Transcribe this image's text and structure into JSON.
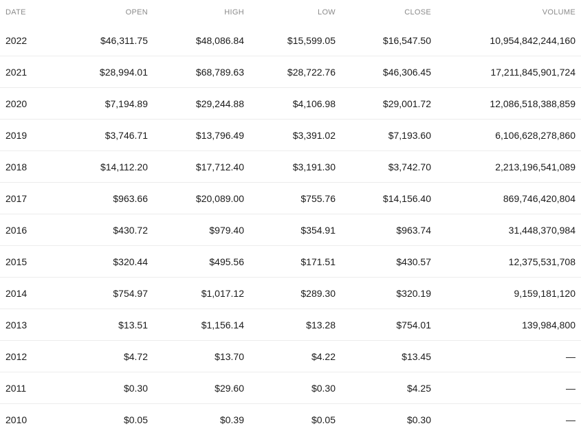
{
  "table": {
    "headers": {
      "date": "DATE",
      "open": "OPEN",
      "high": "HIGH",
      "low": "LOW",
      "close": "CLOSE",
      "volume": "VOLUME"
    },
    "rows": [
      {
        "date": "2022",
        "open": "$46,311.75",
        "high": "$48,086.84",
        "low": "$15,599.05",
        "close": "$16,547.50",
        "volume": "10,954,842,244,160"
      },
      {
        "date": "2021",
        "open": "$28,994.01",
        "high": "$68,789.63",
        "low": "$28,722.76",
        "close": "$46,306.45",
        "volume": "17,211,845,901,724"
      },
      {
        "date": "2020",
        "open": "$7,194.89",
        "high": "$29,244.88",
        "low": "$4,106.98",
        "close": "$29,001.72",
        "volume": "12,086,518,388,859"
      },
      {
        "date": "2019",
        "open": "$3,746.71",
        "high": "$13,796.49",
        "low": "$3,391.02",
        "close": "$7,193.60",
        "volume": "6,106,628,278,860"
      },
      {
        "date": "2018",
        "open": "$14,112.20",
        "high": "$17,712.40",
        "low": "$3,191.30",
        "close": "$3,742.70",
        "volume": "2,213,196,541,089"
      },
      {
        "date": "2017",
        "open": "$963.66",
        "high": "$20,089.00",
        "low": "$755.76",
        "close": "$14,156.40",
        "volume": "869,746,420,804"
      },
      {
        "date": "2016",
        "open": "$430.72",
        "high": "$979.40",
        "low": "$354.91",
        "close": "$963.74",
        "volume": "31,448,370,984"
      },
      {
        "date": "2015",
        "open": "$320.44",
        "high": "$495.56",
        "low": "$171.51",
        "close": "$430.57",
        "volume": "12,375,531,708"
      },
      {
        "date": "2014",
        "open": "$754.97",
        "high": "$1,017.12",
        "low": "$289.30",
        "close": "$320.19",
        "volume": "9,159,181,120"
      },
      {
        "date": "2013",
        "open": "$13.51",
        "high": "$1,156.14",
        "low": "$13.28",
        "close": "$754.01",
        "volume": "139,984,800"
      },
      {
        "date": "2012",
        "open": "$4.72",
        "high": "$13.70",
        "low": "$4.22",
        "close": "$13.45",
        "volume": "—"
      },
      {
        "date": "2011",
        "open": "$0.30",
        "high": "$29.60",
        "low": "$0.30",
        "close": "$4.25",
        "volume": "—"
      },
      {
        "date": "2010",
        "open": "$0.05",
        "high": "$0.39",
        "low": "$0.05",
        "close": "$0.30",
        "volume": "—"
      }
    ]
  }
}
